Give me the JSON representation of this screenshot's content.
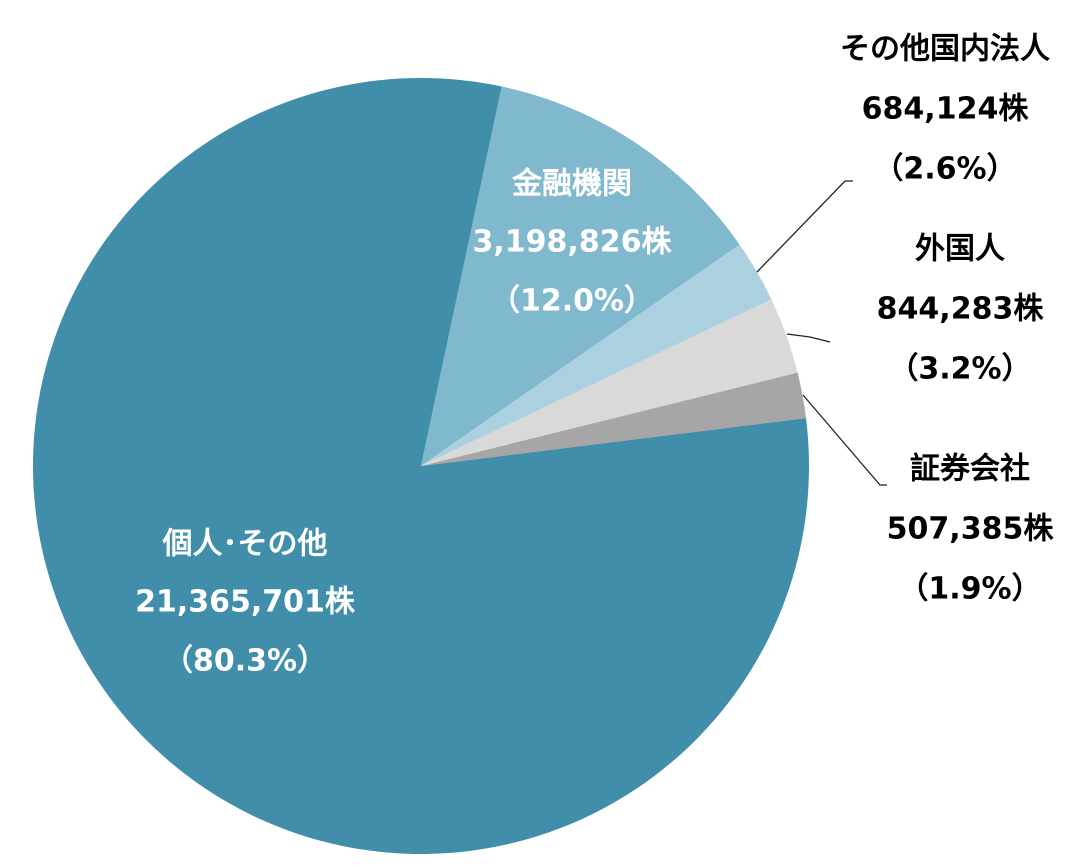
{
  "chart_data": {
    "type": "pie",
    "start_angle_deg": 12,
    "direction": "clockwise",
    "slices": [
      {
        "name": "金融機関",
        "shares": "3,198,826株",
        "percent_label": "（12.0%）",
        "value": 12.0,
        "color": "#80B8CE",
        "label_color": "#FFFFFF"
      },
      {
        "name": "その他国内法人",
        "shares": "684,124株",
        "percent_label": "（2.6%）",
        "value": 2.6,
        "color": "#ABD0DF",
        "label_color": "#000000"
      },
      {
        "name": "外国人",
        "shares": "844,283株",
        "percent_label": "（3.2%）",
        "value": 3.2,
        "color": "#D9D9D9",
        "label_color": "#000000"
      },
      {
        "name": "証券会社",
        "shares": "507,385株",
        "percent_label": "（1.9%）",
        "value": 1.9,
        "color": "#A6A6A6",
        "label_color": "#000000"
      },
      {
        "name": "個人･その他",
        "shares": "21,365,701株",
        "percent_label": "（80.3%）",
        "value": 80.3,
        "color": "#418EAA",
        "label_color": "#FFFFFF"
      }
    ]
  }
}
